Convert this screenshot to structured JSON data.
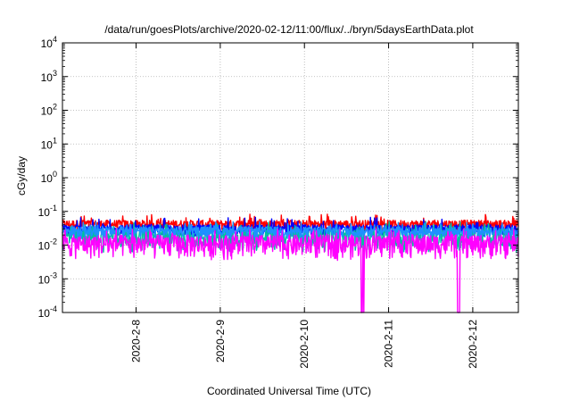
{
  "chart_data": {
    "type": "line",
    "title": "/data/run/goesPlots/archive/2020-02-12/11:00/flux/../bryn/5daysEarthData.plot",
    "xlabel": "Coordinated Universal Time (UTC)",
    "ylabel": "cGy/day",
    "yscale": "log",
    "ylim": [
      0.0001,
      10000
    ],
    "xlim": [
      "2020-02-07 03:00",
      "2020-02-12 13:00"
    ],
    "grid": true,
    "y_ticks": [
      {
        "base": "10",
        "exp": "-4"
      },
      {
        "base": "10",
        "exp": "-3"
      },
      {
        "base": "10",
        "exp": "-2"
      },
      {
        "base": "10",
        "exp": "-1"
      },
      {
        "base": "10",
        "exp": "0"
      },
      {
        "base": "10",
        "exp": "1"
      },
      {
        "base": "10",
        "exp": "2"
      },
      {
        "base": "10",
        "exp": "3"
      },
      {
        "base": "10",
        "exp": "4"
      }
    ],
    "x_ticks": [
      "2020-2-8",
      "2020-2-9",
      "2020-2-10",
      "2020-2-11",
      "2020-2-12"
    ],
    "series": [
      {
        "color": "#ff0000",
        "band_low": 0.025,
        "band_high": 0.055,
        "spike_max": 0.085
      },
      {
        "color": "#0000ff",
        "band_low": 0.018,
        "band_high": 0.04,
        "spike_max": 0.07
      },
      {
        "color": "#00c0a0",
        "band_low": 0.006,
        "band_high": 0.03,
        "spike_max": 0.05
      },
      {
        "color": "#1e90ff",
        "band_low": 0.015,
        "band_high": 0.035,
        "spike_max": 0.05
      },
      {
        "color": "#ff00ff",
        "band_low": 0.0035,
        "band_high": 0.02,
        "spike_max": 0.03,
        "dropouts": [
          {
            "start": "2020-02-10 16:10",
            "end": "2020-02-10 16:35",
            "value": 0.0001
          },
          {
            "start": "2020-02-10 16:50",
            "end": "2020-02-10 17:05",
            "value": 0.0001
          },
          {
            "start": "2020-02-11 19:40",
            "end": "2020-02-11 20:15",
            "value": 0.0001
          }
        ]
      }
    ]
  }
}
